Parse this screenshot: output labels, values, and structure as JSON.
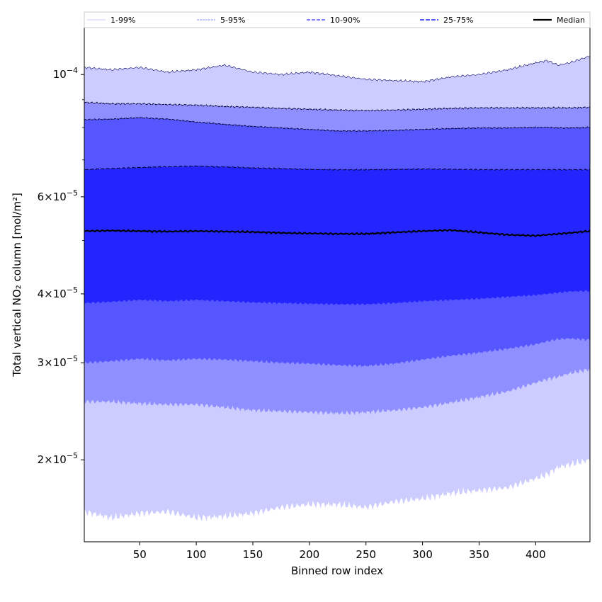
{
  "chart_data": {
    "type": "area",
    "xlabel": "Binned row index",
    "ylabel": "Total vertical NO₂ column [mol/m²]",
    "x_ticks": [
      50,
      100,
      150,
      200,
      250,
      300,
      350,
      400
    ],
    "y_scale": "log",
    "y_ticks": [
      {
        "value": 2e-05,
        "mantissa": "2",
        "exponent": "−5"
      },
      {
        "value": 3e-05,
        "mantissa": "3",
        "exponent": "−5"
      },
      {
        "value": 4e-05,
        "mantissa": "4",
        "exponent": "−5"
      },
      {
        "value": 6e-05,
        "mantissa": "6",
        "exponent": "−5"
      },
      {
        "value": 0.0001,
        "mantissa": "",
        "exponent": "−4"
      }
    ],
    "xlim": [
      1,
      448
    ],
    "ylim": [
      1.42e-05,
      0.000122
    ],
    "colors": {
      "band_1_99": "#ccccff",
      "band_5_95": "#8f8fff",
      "band_10_90": "#5656ff",
      "band_25_75": "#2424ff",
      "median": "#000000"
    },
    "legend": {
      "placement": "top, above plot",
      "entries": [
        "1-99%",
        "5-95%",
        "10-90%",
        "25-75%",
        "Median"
      ]
    },
    "x": [
      1,
      25,
      50,
      75,
      100,
      125,
      150,
      175,
      200,
      225,
      250,
      275,
      300,
      325,
      350,
      375,
      400,
      410,
      420,
      430,
      448
    ],
    "series": [
      {
        "name": "1-99%",
        "lower": [
          1.61e-05,
          1.57e-05,
          1.6e-05,
          1.61e-05,
          1.57e-05,
          1.58e-05,
          1.6e-05,
          1.64e-05,
          1.66e-05,
          1.66e-05,
          1.64e-05,
          1.68e-05,
          1.7e-05,
          1.74e-05,
          1.76e-05,
          1.78e-05,
          1.85e-05,
          1.88e-05,
          1.94e-05,
          1.96e-05,
          2e-05
        ],
        "upper": [
          0.000103,
          0.000102,
          0.000103,
          0.000101,
          0.000102,
          0.000104,
          0.000101,
          0.0001,
          0.000101,
          9.95e-05,
          9.8e-05,
          9.75e-05,
          9.7e-05,
          9.9e-05,
          0.0001,
          0.000102,
          0.000105,
          0.000106,
          0.000104,
          0.000105,
          0.000108
        ]
      },
      {
        "name": "5-95%",
        "lower": [
          2.55e-05,
          2.55e-05,
          2.53e-05,
          2.52e-05,
          2.52e-05,
          2.49e-05,
          2.46e-05,
          2.45e-05,
          2.44e-05,
          2.43e-05,
          2.44e-05,
          2.46e-05,
          2.49e-05,
          2.54e-05,
          2.6e-05,
          2.66e-05,
          2.76e-05,
          2.8e-05,
          2.83e-05,
          2.87e-05,
          2.92e-05
        ],
        "upper": [
          8.9e-05,
          8.85e-05,
          8.85e-05,
          8.82e-05,
          8.8e-05,
          8.75e-05,
          8.72e-05,
          8.68e-05,
          8.65e-05,
          8.62e-05,
          8.6e-05,
          8.62e-05,
          8.65e-05,
          8.68e-05,
          8.7e-05,
          8.7e-05,
          8.7e-05,
          8.7e-05,
          8.7e-05,
          8.7e-05,
          8.72e-05
        ]
      },
      {
        "name": "10-90%",
        "lower": [
          3e-05,
          3.02e-05,
          3.05e-05,
          3.03e-05,
          3.05e-05,
          3.04e-05,
          3.02e-05,
          3e-05,
          2.99e-05,
          2.97e-05,
          2.96e-05,
          2.99e-05,
          3.04e-05,
          3.09e-05,
          3.13e-05,
          3.18e-05,
          3.24e-05,
          3.28e-05,
          3.31e-05,
          3.32e-05,
          3.3e-05
        ],
        "upper": [
          8.28e-05,
          8.3e-05,
          8.35e-05,
          8.3e-05,
          8.2e-05,
          8.12e-05,
          8.05e-05,
          8e-05,
          7.95e-05,
          7.9e-05,
          7.9e-05,
          7.92e-05,
          7.95e-05,
          7.98e-05,
          8e-05,
          8e-05,
          8.02e-05,
          8.02e-05,
          8e-05,
          8e-05,
          8.02e-05
        ]
      },
      {
        "name": "25-75%",
        "lower": [
          3.85e-05,
          3.87e-05,
          3.9e-05,
          3.88e-05,
          3.9e-05,
          3.88e-05,
          3.86e-05,
          3.85e-05,
          3.84e-05,
          3.83e-05,
          3.83e-05,
          3.85e-05,
          3.88e-05,
          3.9e-05,
          3.92e-05,
          3.95e-05,
          3.98e-05,
          4e-05,
          4.02e-05,
          4.04e-05,
          4.05e-05
        ],
        "upper": [
          6.72e-05,
          6.75e-05,
          6.78e-05,
          6.8e-05,
          6.82e-05,
          6.8e-05,
          6.77e-05,
          6.75e-05,
          6.73e-05,
          6.72e-05,
          6.72e-05,
          6.73e-05,
          6.74e-05,
          6.73e-05,
          6.72e-05,
          6.72e-05,
          6.72e-05,
          6.72e-05,
          6.72e-05,
          6.72e-05,
          6.72e-05
        ]
      },
      {
        "name": "Median",
        "values": [
          5.2e-05,
          5.21e-05,
          5.2e-05,
          5.19e-05,
          5.2e-05,
          5.19e-05,
          5.18e-05,
          5.16e-05,
          5.15e-05,
          5.14e-05,
          5.14e-05,
          5.17e-05,
          5.2e-05,
          5.22e-05,
          5.17e-05,
          5.12e-05,
          5.1e-05,
          5.12e-05,
          5.14e-05,
          5.16e-05,
          5.2e-05
        ]
      }
    ]
  }
}
